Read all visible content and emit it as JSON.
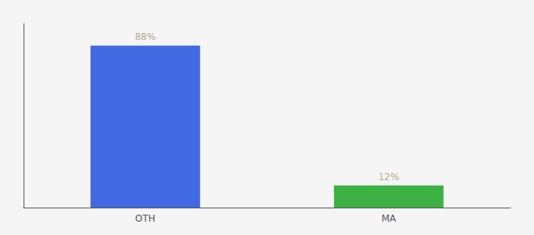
{
  "chart_data": {
    "type": "bar",
    "categories": [
      "OTH",
      "MA"
    ],
    "values": [
      88,
      12
    ],
    "value_labels": [
      "88%",
      "12%"
    ],
    "colors": [
      "#4169E1",
      "#3CB043"
    ],
    "ylim": [
      0,
      100
    ],
    "data_labels": true,
    "tick_labels": "x",
    "grid": false
  }
}
